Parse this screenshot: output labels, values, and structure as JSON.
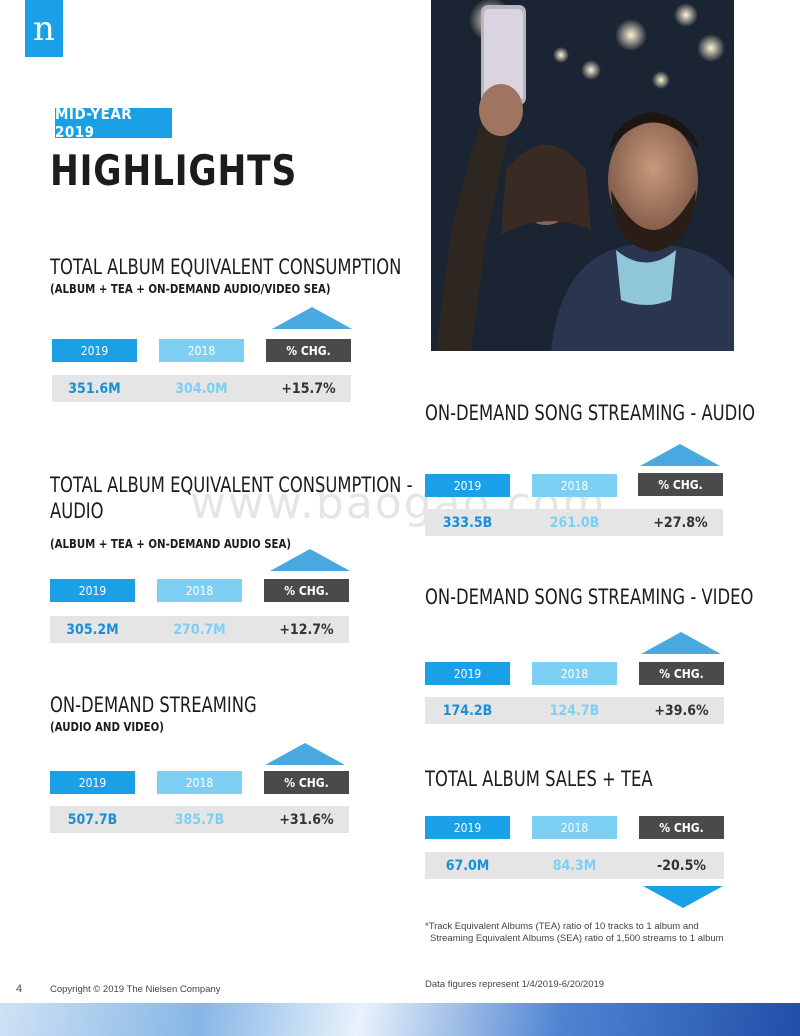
{
  "brand": {
    "logo_letter": "n"
  },
  "header": {
    "badge": "MID-YEAR 2019",
    "title": "HIGHLIGHTS"
  },
  "sections": [
    {
      "title": "TOTAL ALBUM EQUIVALENT CONSUMPTION",
      "subtitle": "(ALBUM + TEA + ON-DEMAND AUDIO/VIDEO SEA)",
      "labels": [
        "2019",
        "2018",
        "% CHG."
      ],
      "values": [
        "351.6M",
        "304.0M",
        "+15.7%"
      ],
      "trend": "up"
    },
    {
      "title_line1": "TOTAL ALBUM EQUIVALENT CONSUMPTION -",
      "title_line2": "AUDIO",
      "subtitle": "(ALBUM + TEA + ON-DEMAND AUDIO SEA)",
      "labels": [
        "2019",
        "2018",
        "% CHG."
      ],
      "values": [
        "305.2M",
        "270.7M",
        "+12.7%"
      ],
      "trend": "up"
    },
    {
      "title": "ON-DEMAND STREAMING",
      "subtitle": "(AUDIO AND VIDEO)",
      "labels": [
        "2019",
        "2018",
        "% CHG."
      ],
      "values": [
        "507.7B",
        "385.7B",
        "+31.6%"
      ],
      "trend": "up"
    },
    {
      "title": "ON-DEMAND SONG STREAMING - AUDIO",
      "labels": [
        "2019",
        "2018",
        "% CHG."
      ],
      "values": [
        "333.5B",
        "261.0B",
        "+27.8%"
      ],
      "trend": "up"
    },
    {
      "title": "ON-DEMAND SONG STREAMING - VIDEO",
      "labels": [
        "2019",
        "2018",
        "% CHG."
      ],
      "values": [
        "174.2B",
        "124.7B",
        "+39.6%"
      ],
      "trend": "up"
    },
    {
      "title": "TOTAL ALBUM SALES + TEA",
      "labels": [
        "2019",
        "2018",
        "% CHG."
      ],
      "values": [
        "67.0M",
        "84.3M",
        "-20.5%"
      ],
      "trend": "down"
    }
  ],
  "footnote": {
    "line1": "*Track Equivalent Albums (TEA)  ratio of 10 tracks to 1 album and",
    "line2": "Streaming Equivalent Albums (SEA) ratio of 1,500 streams to 1 album"
  },
  "footer": {
    "page_number": "4",
    "copyright": "Copyright © 2019 The Nielsen Company",
    "data_range": "Data figures represent 1/4/2019-6/20/2019"
  },
  "watermark": "www.baogao.com",
  "colors": {
    "accent": "#1aa0e6",
    "light": "#7dcff3",
    "dark": "#4a4a4a",
    "arrow": "#4aa8e0"
  }
}
